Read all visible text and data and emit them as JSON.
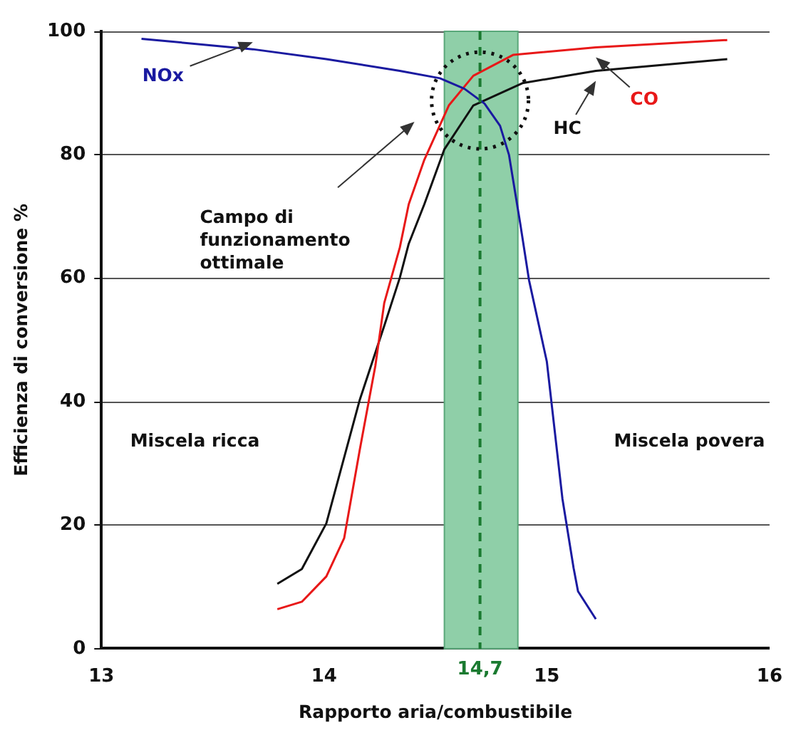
{
  "chart_data": {
    "type": "line",
    "xlabel": "Rapporto aria/combustibile",
    "ylabel": "Efficienza di conversione %",
    "xlim": [
      13,
      16
    ],
    "xticks": [
      13,
      14,
      15,
      16
    ],
    "ylim": [
      0,
      100
    ],
    "yticks": [
      0,
      20,
      40,
      60,
      80,
      100
    ],
    "grid": "y",
    "legend": false,
    "marker": "none",
    "line_style": "solid",
    "series": [
      {
        "name": "NOx",
        "color": "#1a1aa0",
        "x": [
          13.18,
          13.68,
          14.01,
          14.34,
          14.52,
          14.63,
          14.72,
          14.79,
          14.83,
          14.88,
          14.92,
          15.0,
          15.07,
          15.12,
          15.14,
          15.22
        ],
        "values": [
          98.8,
          97.1,
          95.5,
          93.6,
          92.4,
          90.7,
          88.3,
          84.7,
          80,
          69,
          59.7,
          46.5,
          24.3,
          13.1,
          9.3,
          4.8
        ]
      },
      {
        "name": "CO",
        "color": "#e81818",
        "x": [
          13.79,
          13.9,
          14.01,
          14.09,
          14.16,
          14.23,
          14.27,
          14.34,
          14.38,
          14.45,
          14.56,
          14.67,
          14.85,
          15.22,
          15.81
        ],
        "values": [
          6.4,
          7.6,
          11.7,
          17.9,
          32.2,
          45.8,
          56,
          65,
          72,
          79.2,
          88,
          92.8,
          96.2,
          97.4,
          98.6
        ]
      },
      {
        "name": "HC",
        "color": "#111111",
        "x": [
          13.79,
          13.9,
          14.01,
          14.16,
          14.27,
          14.34,
          14.38,
          14.45,
          14.54,
          14.67,
          14.89,
          15.22,
          15.81
        ],
        "values": [
          10.5,
          12.9,
          20.3,
          40.3,
          52.3,
          60.1,
          65.6,
          72,
          80.9,
          88,
          91.6,
          93.6,
          95.5
        ]
      }
    ],
    "bands": [
      {
        "axis": "x",
        "from": 14.54,
        "to": 14.87,
        "color": "#8fcfa8"
      }
    ],
    "ref_lines": [
      {
        "axis": "x",
        "value": 14.7,
        "label": "14,7",
        "color": "#1a7a30",
        "line_style": "dashed"
      }
    ],
    "annotations": [
      "Campo di funzionamento ottimale",
      "Miscela ricca",
      "Miscela povera"
    ]
  }
}
